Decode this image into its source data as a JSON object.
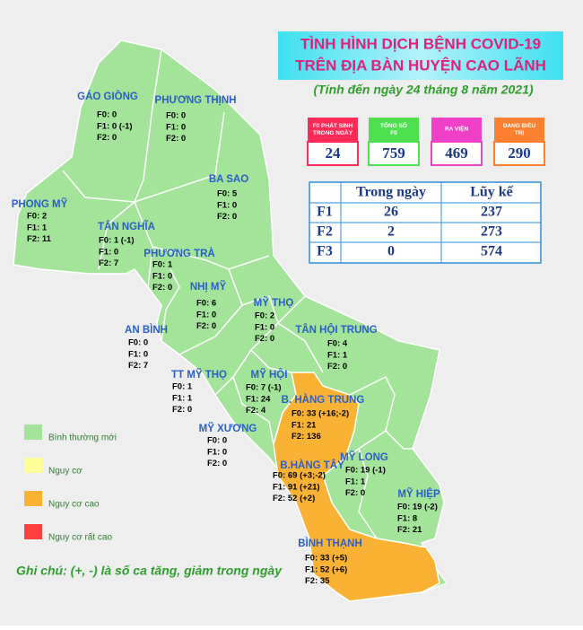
{
  "header": {
    "title_line1": "TÌNH HÌNH DỊCH BỆNH COVID-19",
    "title_line2": "TRÊN ĐỊA BÀN HUYỆN CAO LÃNH",
    "subtitle": "(Tính đến ngày 24 tháng 8 năm 2021)"
  },
  "stats": [
    {
      "label": "F0 PHÁT SINH TRONG NGÀY",
      "value": "24"
    },
    {
      "label": "TỔNG SỐ F0",
      "value": "759"
    },
    {
      "label": "RA VIỆN",
      "value": "469"
    },
    {
      "label": "ĐANG ĐIỀU TRỊ",
      "value": "290"
    }
  ],
  "table": {
    "columns": [
      "Trong ngày",
      "Lũy kế"
    ],
    "rows": [
      [
        "F1",
        "26",
        "237"
      ],
      [
        "F2",
        "2",
        "273"
      ],
      [
        "F3",
        "0",
        "574"
      ]
    ]
  },
  "areas": [
    {
      "name": "GÁO GIỒNG",
      "lines": [
        "F0: 0",
        "F1: 0 (-1)",
        "F2: 0"
      ]
    },
    {
      "name": "PHƯƠNG THỊNH",
      "lines": [
        "F0: 0",
        "F1: 0",
        "F2: 0"
      ]
    },
    {
      "name": "BA SAO",
      "lines": [
        "F0: 5",
        "F1: 0",
        "F2: 0"
      ]
    },
    {
      "name": "PHONG MỸ",
      "lines": [
        "F0: 2",
        "F1: 1",
        "F2: 11"
      ]
    },
    {
      "name": "TÂN NGHĨA",
      "lines": [
        "F0: 1 (-1)",
        "F1: 0",
        "F2: 7"
      ]
    },
    {
      "name": "PHƯƠNG TRÀ",
      "lines": [
        "F0: 1",
        "F1: 0",
        "F2: 0"
      ]
    },
    {
      "name": "NHỊ MỸ",
      "lines": [
        "F0: 6",
        "F1: 0",
        "F2: 0"
      ]
    },
    {
      "name": "MỸ THỌ",
      "lines": [
        "F0: 2",
        "F1: 0",
        "F2: 0"
      ]
    },
    {
      "name": "AN BÌNH",
      "lines": [
        "F0: 0",
        "F1: 0",
        "F2: 7"
      ]
    },
    {
      "name": "TÂN HỘI TRUNG",
      "lines": [
        "F0: 4",
        "F1: 1",
        "F2: 0"
      ]
    },
    {
      "name": "TT MỸ THỌ",
      "lines": [
        "F0: 1",
        "F1: 1",
        "F2: 0"
      ]
    },
    {
      "name": "MỸ HỘI",
      "lines": [
        "F0: 7 (-1)",
        "F1: 24",
        "F2: 4"
      ]
    },
    {
      "name": "B. HÀNG TRUNG",
      "lines": [
        "F0: 33 (+16;-2)",
        "F1: 21",
        "F2: 136"
      ]
    },
    {
      "name": "MỸ XƯƠNG",
      "lines": [
        "F0: 0",
        "F1: 0",
        "F2: 0"
      ]
    },
    {
      "name": "B.HÀNG TÂY",
      "lines": [
        "F0: 69 (+3;-2)",
        "F1: 91 (+21)",
        "F2: 52 (+2)"
      ]
    },
    {
      "name": "MỸ LONG",
      "lines": [
        "F0: 19 (-1)",
        "F1: 1",
        "F2: 0"
      ]
    },
    {
      "name": "MỸ HIỆP",
      "lines": [
        "F0: 19 (-2)",
        "F1: 8",
        "F2: 21"
      ]
    },
    {
      "name": "BÌNH THẠNH",
      "lines": [
        "F0: 33 (+5)",
        "F1: 52 (+6)",
        "F2: 35"
      ]
    }
  ],
  "legend": [
    {
      "label": "Bình thường mới",
      "color": "#a3e39a"
    },
    {
      "label": "Nguy cơ",
      "color": "#ffff99"
    },
    {
      "label": "Nguy cơ  cao",
      "color": "#f9b233"
    },
    {
      "label": "Nguy cơ rất cao",
      "color": "#ff4040"
    }
  ],
  "note": "Ghi chú: (+, -) là số ca tăng, giảm trong ngày"
}
